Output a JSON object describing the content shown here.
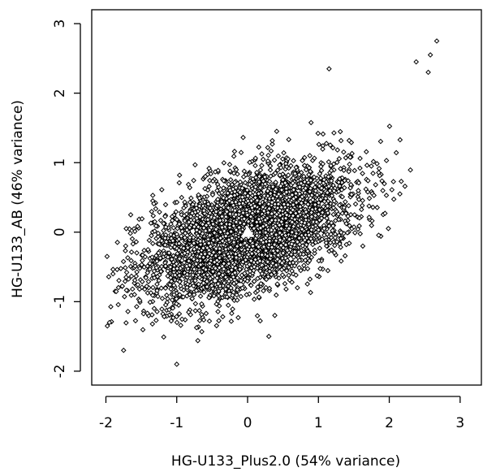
{
  "chart_data": {
    "type": "scatter",
    "title": "",
    "xlabel": "HG-U133_Plus2.0 (54% variance)",
    "ylabel": "HG-U133_AB (46% variance)",
    "xlim": [
      -2.2,
      3.3
    ],
    "ylim": [
      -2.2,
      3.2
    ],
    "xticks": [
      -2,
      -1,
      0,
      1,
      2,
      3
    ],
    "yticks": [
      -2,
      -1,
      0,
      1,
      2,
      3
    ],
    "xtick_labels": [
      "-2",
      "-1",
      "0",
      "1",
      "2",
      "3"
    ],
    "ytick_labels": [
      "-2",
      "-1",
      "0",
      "1",
      "2",
      "3"
    ],
    "grid": false,
    "legend": "none",
    "point_style": "open-diamond",
    "point_color": "#000000",
    "cloud": {
      "n_points_shown": 4000,
      "center": [
        0,
        0
      ],
      "sd_major": 0.78,
      "sd_minor": 0.38,
      "major_axis_angle_deg": 25,
      "x_range": [
        -2.0,
        2.7
      ],
      "y_range": [
        -1.95,
        2.75
      ]
    },
    "points": [
      {
        "x": 2.67,
        "y": 2.75
      },
      {
        "x": 2.58,
        "y": 2.55
      },
      {
        "x": 2.38,
        "y": 2.45
      },
      {
        "x": 2.55,
        "y": 2.3
      },
      {
        "x": -1.75,
        "y": -1.7
      },
      {
        "x": -1.95,
        "y": -1.3
      },
      {
        "x": -1.0,
        "y": -1.9
      },
      {
        "x": -1.9,
        "y": -0.6
      },
      {
        "x": -1.65,
        "y": 0.25
      },
      {
        "x": 1.15,
        "y": 2.35
      },
      {
        "x": 2.15,
        "y": 0.55
      },
      {
        "x": 0.3,
        "y": -1.5
      }
    ],
    "marker": {
      "x": 0,
      "y": 0,
      "shape": "triangle",
      "color": "#ffffff"
    }
  }
}
